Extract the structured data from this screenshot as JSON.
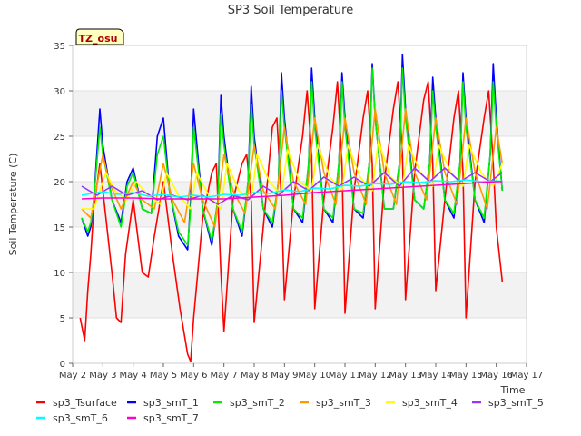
{
  "chart_data": {
    "type": "line",
    "title": "SP3 Soil Temperature",
    "xlabel": "Time",
    "ylabel": "Soil Temperature (C)",
    "annotation": "TZ_osu",
    "xlim": [
      2,
      17
    ],
    "ylim": [
      0,
      35
    ],
    "x_ticks": [
      2,
      3,
      4,
      5,
      6,
      7,
      8,
      9,
      10,
      11,
      12,
      13,
      14,
      15,
      16,
      17
    ],
    "x_tick_labels": [
      "May 2",
      "May 3",
      "May 4",
      "May 5",
      "May 6",
      "May 7",
      "May 8",
      "May 9",
      "May 10",
      "May 11",
      "May 12",
      "May 13",
      "May 14",
      "May 15",
      "May 16",
      "May 17"
    ],
    "y_ticks": [
      0,
      5,
      10,
      15,
      20,
      25,
      30,
      35
    ],
    "y_tick_labels": [
      "0",
      "5",
      "10",
      "15",
      "20",
      "25",
      "30",
      "35"
    ],
    "series": [
      {
        "name": "sp3_Tsurface",
        "color": "#ff0000",
        "x": [
          2.25,
          2.4,
          2.5,
          2.6,
          2.7,
          2.9,
          3.1,
          3.3,
          3.45,
          3.6,
          3.75,
          4.0,
          4.3,
          4.5,
          4.7,
          5.0,
          5.3,
          5.55,
          5.8,
          5.9,
          6.0,
          6.3,
          6.6,
          6.75,
          6.9,
          7.0,
          7.3,
          7.6,
          7.75,
          7.9,
          8.0,
          8.3,
          8.6,
          8.75,
          8.9,
          9.0,
          9.3,
          9.6,
          9.75,
          9.9,
          10.0,
          10.3,
          10.6,
          10.75,
          10.9,
          11.0,
          11.3,
          11.6,
          11.75,
          11.9,
          12.0,
          12.3,
          12.6,
          12.75,
          12.9,
          13.0,
          13.3,
          13.6,
          13.75,
          13.9,
          14.0,
          14.3,
          14.6,
          14.75,
          14.9,
          15.0,
          15.3,
          15.6,
          15.75,
          15.9,
          16.0,
          16.2
        ],
        "y": [
          5,
          2.5,
          8,
          12,
          17,
          22,
          16,
          10,
          5,
          4.5,
          12,
          18,
          10,
          9.5,
          14,
          20,
          12,
          6,
          1,
          0.2,
          5,
          16,
          21,
          22,
          10,
          3.5,
          18,
          22,
          23,
          18,
          4.5,
          15,
          26,
          27,
          18,
          7,
          18,
          25,
          30,
          23,
          6,
          18,
          26,
          31,
          22,
          5.5,
          19,
          27,
          30,
          22,
          6,
          20,
          28,
          31,
          23,
          7,
          21,
          29,
          31,
          22,
          8,
          18,
          27,
          30,
          21,
          5,
          20,
          27,
          30,
          22,
          15,
          9
        ]
      },
      {
        "name": "sp3_smT_1",
        "color": "#0000ff",
        "x": [
          2.3,
          2.5,
          2.6,
          2.7,
          2.9,
          3.0,
          3.3,
          3.6,
          3.8,
          4.0,
          4.3,
          4.6,
          4.8,
          5.0,
          5.2,
          5.5,
          5.8,
          5.9,
          6.0,
          6.3,
          6.6,
          6.8,
          6.9,
          7.0,
          7.3,
          7.6,
          7.8,
          7.9,
          8.0,
          8.3,
          8.6,
          8.8,
          8.9,
          9.0,
          9.3,
          9.6,
          9.8,
          9.9,
          10.0,
          10.3,
          10.6,
          10.8,
          10.9,
          11.0,
          11.3,
          11.6,
          11.8,
          11.9,
          12.0,
          12.3,
          12.6,
          12.8,
          12.9,
          13.0,
          13.3,
          13.6,
          13.8,
          13.9,
          14.0,
          14.3,
          14.6,
          14.8,
          14.9,
          15.0,
          15.3,
          15.6,
          15.8,
          15.9,
          16.0,
          16.2
        ],
        "y": [
          16,
          14,
          15,
          18,
          28,
          24,
          18,
          15.5,
          20,
          21.5,
          17,
          16.5,
          25,
          27,
          19,
          14,
          12.5,
          18,
          28,
          17,
          13,
          18,
          29.5,
          25,
          17,
          14,
          20,
          30.5,
          25,
          17,
          15,
          20,
          32,
          27,
          17,
          15.5,
          22,
          32.5,
          27,
          17,
          15.5,
          22,
          32,
          27,
          17,
          16,
          22,
          33,
          27,
          17,
          17,
          22,
          34,
          28,
          18,
          17,
          22,
          31.5,
          27,
          18,
          16,
          22,
          32,
          27,
          18,
          15.5,
          23,
          33,
          27,
          19
        ]
      },
      {
        "name": "sp3_smT_2",
        "color": "#00ee00",
        "x": [
          2.3,
          2.5,
          2.6,
          2.7,
          2.9,
          3.0,
          3.3,
          3.6,
          3.8,
          4.0,
          4.3,
          4.6,
          4.8,
          5.0,
          5.2,
          5.5,
          5.8,
          5.9,
          6.0,
          6.3,
          6.6,
          6.8,
          6.9,
          7.0,
          7.3,
          7.6,
          7.8,
          7.9,
          8.0,
          8.3,
          8.6,
          8.8,
          8.9,
          9.0,
          9.3,
          9.6,
          9.8,
          9.9,
          10.0,
          10.3,
          10.6,
          10.8,
          10.9,
          11.0,
          11.3,
          11.6,
          11.8,
          11.9,
          12.0,
          12.3,
          12.6,
          12.8,
          12.9,
          13.0,
          13.3,
          13.6,
          13.8,
          13.9,
          14.0,
          14.3,
          14.6,
          14.8,
          14.9,
          15.0,
          15.3,
          15.6,
          15.8,
          15.9,
          16.0,
          16.2
        ],
        "y": [
          16,
          14.5,
          15.5,
          18,
          26,
          23,
          18,
          15,
          19.5,
          21,
          17,
          16.5,
          23,
          25,
          19,
          14.5,
          13,
          17,
          26,
          17,
          13.5,
          18,
          27.5,
          24,
          17,
          14.5,
          20,
          28.5,
          24,
          17,
          15.5,
          20,
          30,
          26,
          17,
          16,
          22,
          31,
          26,
          17,
          16,
          22,
          31,
          26,
          17,
          16.5,
          22,
          32.5,
          27,
          17,
          17,
          22,
          32.5,
          27,
          18,
          17,
          22,
          30,
          26,
          18,
          16.5,
          22,
          31,
          26,
          18,
          16,
          23,
          31,
          26,
          19
        ]
      },
      {
        "name": "sp3_smT_3",
        "color": "#ff9900",
        "x": [
          2.3,
          2.6,
          3.0,
          3.2,
          3.6,
          4.0,
          4.3,
          4.7,
          5.0,
          5.3,
          5.7,
          6.0,
          6.3,
          6.7,
          7.0,
          7.3,
          7.7,
          8.0,
          8.3,
          8.7,
          9.0,
          9.3,
          9.7,
          10.0,
          10.3,
          10.7,
          11.0,
          11.3,
          11.7,
          12.0,
          12.3,
          12.7,
          13.0,
          13.3,
          13.7,
          14.0,
          14.3,
          14.7,
          15.0,
          15.3,
          15.7,
          16.0,
          16.2
        ],
        "y": [
          17,
          16,
          23,
          20,
          17,
          20,
          18,
          17,
          22,
          18,
          15.5,
          22,
          18,
          15,
          23,
          19,
          16.5,
          24,
          19,
          17,
          26,
          20,
          17.5,
          27,
          21,
          17.5,
          27,
          21,
          17.5,
          28,
          21,
          17.5,
          28,
          21,
          18,
          27,
          21,
          17.5,
          27,
          21,
          17,
          26,
          22
        ]
      },
      {
        "name": "sp3_smT_4",
        "color": "#ffff00",
        "x": [
          2.3,
          2.7,
          3.1,
          3.4,
          3.8,
          4.1,
          4.5,
          4.9,
          5.1,
          5.5,
          5.9,
          6.1,
          6.5,
          6.9,
          7.1,
          7.5,
          7.9,
          8.1,
          8.5,
          8.9,
          9.1,
          9.5,
          9.9,
          10.1,
          10.5,
          10.9,
          11.1,
          11.5,
          11.9,
          12.1,
          12.5,
          12.9,
          13.1,
          13.5,
          13.9,
          14.1,
          14.5,
          14.9,
          15.1,
          15.5,
          15.9,
          16.2
        ],
        "y": [
          17,
          17,
          21,
          19,
          18,
          20,
          18.5,
          17.5,
          21,
          18.5,
          17,
          21,
          18.5,
          17,
          22,
          19,
          18,
          23,
          20,
          18.5,
          23.5,
          20,
          19,
          24,
          20.5,
          19,
          24,
          20.5,
          19,
          24.5,
          20.5,
          19.5,
          24,
          21,
          19.5,
          24,
          21,
          19.5,
          24,
          21,
          19.5,
          22
        ]
      },
      {
        "name": "sp3_smT_5",
        "color": "#9933ff",
        "x": [
          2.3,
          2.8,
          3.3,
          3.8,
          4.3,
          4.8,
          5.3,
          5.8,
          6.3,
          6.8,
          7.3,
          7.8,
          8.3,
          8.8,
          9.3,
          9.8,
          10.3,
          10.8,
          11.3,
          11.8,
          12.3,
          12.8,
          13.3,
          13.8,
          14.3,
          14.8,
          15.3,
          15.8,
          16.2
        ],
        "y": [
          19.5,
          18.5,
          19.5,
          18.5,
          19,
          18,
          18.5,
          18,
          18.5,
          17.5,
          18.5,
          18,
          19.5,
          18.5,
          20,
          19,
          20.5,
          19.5,
          20.5,
          19.5,
          21,
          19.5,
          21.5,
          20,
          21.5,
          20,
          21,
          20,
          21
        ]
      },
      {
        "name": "sp3_smT_6",
        "color": "#00ffff",
        "x": [
          2.3,
          3.0,
          3.5,
          4.0,
          4.5,
          5.0,
          5.5,
          6.0,
          6.5,
          7.0,
          7.5,
          8.0,
          8.5,
          9.0,
          9.5,
          10.0,
          10.5,
          11.0,
          11.5,
          12.0,
          12.5,
          13.0,
          13.5,
          14.0,
          14.5,
          15.0,
          15.5,
          16.0,
          16.2
        ],
        "y": [
          18.5,
          18.9,
          18.6,
          18.8,
          18.4,
          18.6,
          18.3,
          18.5,
          18.3,
          18.6,
          18.5,
          18.8,
          18.7,
          19.1,
          18.9,
          19.3,
          19.2,
          19.6,
          19.5,
          19.8,
          19.7,
          20.0,
          19.9,
          20.1,
          20.0,
          20.2,
          20.0,
          20.1,
          20.0
        ]
      },
      {
        "name": "sp3_smT_7",
        "color": "#ff00cc",
        "x": [
          2.3,
          3.0,
          4.0,
          5.0,
          6.0,
          7.0,
          8.0,
          9.0,
          10.0,
          11.0,
          12.0,
          13.0,
          14.0,
          15.0,
          16.0,
          16.2
        ],
        "y": [
          18.1,
          18.2,
          18.2,
          18.1,
          18.1,
          18.1,
          18.3,
          18.5,
          18.8,
          19.0,
          19.2,
          19.4,
          19.6,
          19.8,
          20.0,
          20.0
        ]
      }
    ]
  }
}
